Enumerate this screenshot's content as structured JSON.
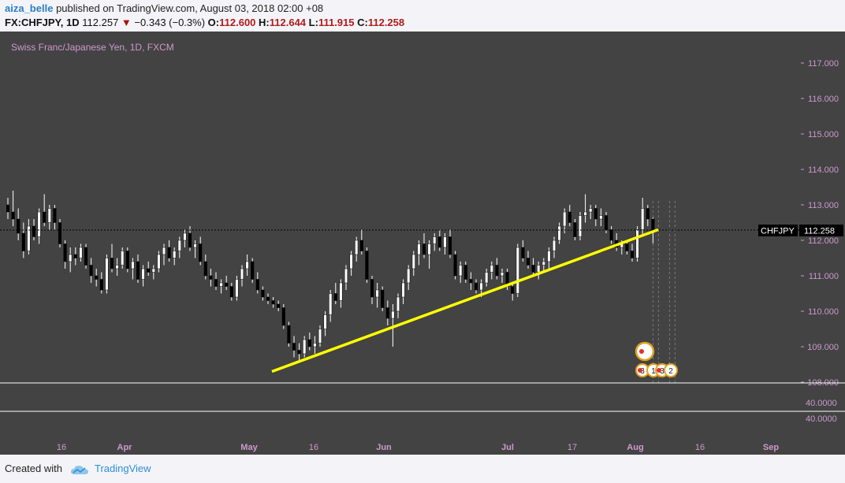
{
  "header": {
    "author": "aiza_belle",
    "published_text": "published on TradingView.com, August 03, 2018 02:00 +08",
    "symbol": "FX:CHFJPY, 1D",
    "last": "112.257",
    "change": "−0.343 (−0.3%)",
    "open_label": "O:",
    "open": "112.600",
    "high_label": "H:",
    "high": "112.644",
    "low_label": "L:",
    "low": "111.915",
    "close_label": "C:",
    "close": "112.258"
  },
  "footer": {
    "created_with": "Created with",
    "brand": "TradingView"
  },
  "colors": {
    "background": "#434343",
    "trendline": "#ffff00",
    "price_badge": "#000000",
    "up_candle": "#ffffff",
    "down_candle": "#000000",
    "axis_text": "#cc99cc"
  },
  "chart_data": {
    "type": "candlestick",
    "title": "Swiss Franc/Japanese Yen, 1D, FXCM",
    "y_ticks": [
      "117.000",
      "116.000",
      "115.000",
      "114.000",
      "113.000",
      "112.000",
      "111.000",
      "110.000",
      "109.000",
      "108.000"
    ],
    "ylim": [
      107.95,
      117.3
    ],
    "sub_panel_tick": "40.0000",
    "x_ticks": [
      "16",
      "Apr",
      "May",
      "16",
      "Jun",
      "Jul",
      "17",
      "Aug",
      "16",
      "Sep"
    ],
    "price_label": {
      "symbol": "CHFJPY",
      "value": "112.258"
    },
    "trendline": {
      "from": {
        "x": "May 07",
        "y": 108.3
      },
      "to": {
        "x": "Aug 06",
        "y": 112.3
      }
    },
    "event_markers": [
      "3",
      "1",
      "3",
      "2"
    ],
    "candles": [
      {
        "o": 113.0,
        "h": 113.2,
        "l": 112.6,
        "c": 112.8
      },
      {
        "o": 112.8,
        "h": 113.4,
        "l": 112.4,
        "c": 112.6
      },
      {
        "o": 112.6,
        "h": 112.9,
        "l": 112.0,
        "c": 112.2
      },
      {
        "o": 112.2,
        "h": 112.5,
        "l": 111.5,
        "c": 111.7
      },
      {
        "o": 111.7,
        "h": 112.6,
        "l": 111.6,
        "c": 112.4
      },
      {
        "o": 112.4,
        "h": 112.6,
        "l": 112.0,
        "c": 112.1
      },
      {
        "o": 112.1,
        "h": 112.9,
        "l": 111.9,
        "c": 112.8
      },
      {
        "o": 112.8,
        "h": 113.3,
        "l": 112.4,
        "c": 112.5
      },
      {
        "o": 112.5,
        "h": 113.0,
        "l": 112.3,
        "c": 112.9
      },
      {
        "o": 112.9,
        "h": 113.0,
        "l": 112.3,
        "c": 112.5
      },
      {
        "o": 112.5,
        "h": 112.6,
        "l": 111.8,
        "c": 111.9
      },
      {
        "o": 111.9,
        "h": 112.0,
        "l": 111.2,
        "c": 111.4
      },
      {
        "o": 111.4,
        "h": 111.8,
        "l": 111.1,
        "c": 111.6
      },
      {
        "o": 111.6,
        "h": 111.8,
        "l": 111.3,
        "c": 111.5
      },
      {
        "o": 111.5,
        "h": 111.9,
        "l": 111.4,
        "c": 111.8
      },
      {
        "o": 111.8,
        "h": 111.9,
        "l": 111.2,
        "c": 111.3
      },
      {
        "o": 111.3,
        "h": 111.5,
        "l": 110.8,
        "c": 111.0
      },
      {
        "o": 111.0,
        "h": 111.2,
        "l": 110.7,
        "c": 110.9
      },
      {
        "o": 110.9,
        "h": 111.1,
        "l": 110.5,
        "c": 110.6
      },
      {
        "o": 110.6,
        "h": 111.6,
        "l": 110.5,
        "c": 111.5
      },
      {
        "o": 111.5,
        "h": 111.9,
        "l": 111.1,
        "c": 111.2
      },
      {
        "o": 111.2,
        "h": 111.5,
        "l": 111.0,
        "c": 111.3
      },
      {
        "o": 111.3,
        "h": 111.8,
        "l": 111.2,
        "c": 111.7
      },
      {
        "o": 111.7,
        "h": 111.8,
        "l": 111.1,
        "c": 111.2
      },
      {
        "o": 111.2,
        "h": 111.5,
        "l": 110.9,
        "c": 111.4
      },
      {
        "o": 111.4,
        "h": 111.6,
        "l": 110.8,
        "c": 110.9
      },
      {
        "o": 110.9,
        "h": 111.3,
        "l": 110.7,
        "c": 111.2
      },
      {
        "o": 111.2,
        "h": 111.4,
        "l": 111.0,
        "c": 111.1
      },
      {
        "o": 111.1,
        "h": 111.3,
        "l": 110.9,
        "c": 111.2
      },
      {
        "o": 111.2,
        "h": 111.7,
        "l": 111.1,
        "c": 111.6
      },
      {
        "o": 111.6,
        "h": 111.9,
        "l": 111.3,
        "c": 111.8
      },
      {
        "o": 111.8,
        "h": 112.0,
        "l": 111.4,
        "c": 111.5
      },
      {
        "o": 111.5,
        "h": 111.8,
        "l": 111.3,
        "c": 111.7
      },
      {
        "o": 111.7,
        "h": 112.1,
        "l": 111.5,
        "c": 112.0
      },
      {
        "o": 112.0,
        "h": 112.3,
        "l": 111.8,
        "c": 112.2
      },
      {
        "o": 112.2,
        "h": 112.4,
        "l": 111.7,
        "c": 111.8
      },
      {
        "o": 111.8,
        "h": 112.0,
        "l": 111.5,
        "c": 111.9
      },
      {
        "o": 111.9,
        "h": 112.1,
        "l": 111.3,
        "c": 111.4
      },
      {
        "o": 111.4,
        "h": 111.6,
        "l": 110.9,
        "c": 111.0
      },
      {
        "o": 111.0,
        "h": 111.2,
        "l": 110.7,
        "c": 110.9
      },
      {
        "o": 110.9,
        "h": 111.1,
        "l": 110.6,
        "c": 110.7
      },
      {
        "o": 110.7,
        "h": 110.9,
        "l": 110.5,
        "c": 110.8
      },
      {
        "o": 110.8,
        "h": 111.0,
        "l": 110.6,
        "c": 110.7
      },
      {
        "o": 110.7,
        "h": 110.8,
        "l": 110.3,
        "c": 110.4
      },
      {
        "o": 110.4,
        "h": 111.0,
        "l": 110.3,
        "c": 110.9
      },
      {
        "o": 110.9,
        "h": 111.3,
        "l": 110.7,
        "c": 111.2
      },
      {
        "o": 111.2,
        "h": 111.6,
        "l": 111.0,
        "c": 111.4
      },
      {
        "o": 111.4,
        "h": 111.5,
        "l": 110.8,
        "c": 110.9
      },
      {
        "o": 110.9,
        "h": 111.1,
        "l": 110.5,
        "c": 110.6
      },
      {
        "o": 110.6,
        "h": 110.7,
        "l": 110.3,
        "c": 110.4
      },
      {
        "o": 110.4,
        "h": 110.5,
        "l": 110.2,
        "c": 110.3
      },
      {
        "o": 110.3,
        "h": 110.4,
        "l": 110.1,
        "c": 110.2
      },
      {
        "o": 110.2,
        "h": 110.3,
        "l": 110.0,
        "c": 110.1
      },
      {
        "o": 110.1,
        "h": 110.2,
        "l": 109.5,
        "c": 109.6
      },
      {
        "o": 109.6,
        "h": 109.7,
        "l": 109.0,
        "c": 109.1
      },
      {
        "o": 109.1,
        "h": 109.3,
        "l": 108.7,
        "c": 108.9
      },
      {
        "o": 108.9,
        "h": 109.1,
        "l": 108.6,
        "c": 108.8
      },
      {
        "o": 108.8,
        "h": 109.3,
        "l": 108.7,
        "c": 109.2
      },
      {
        "o": 109.2,
        "h": 109.4,
        "l": 108.9,
        "c": 109.0
      },
      {
        "o": 109.0,
        "h": 109.3,
        "l": 108.8,
        "c": 109.1
      },
      {
        "o": 109.1,
        "h": 109.6,
        "l": 109.0,
        "c": 109.5
      },
      {
        "o": 109.5,
        "h": 110.0,
        "l": 109.3,
        "c": 109.9
      },
      {
        "o": 109.9,
        "h": 110.6,
        "l": 109.7,
        "c": 110.5
      },
      {
        "o": 110.5,
        "h": 110.8,
        "l": 110.2,
        "c": 110.3
      },
      {
        "o": 110.3,
        "h": 110.9,
        "l": 110.1,
        "c": 110.8
      },
      {
        "o": 110.8,
        "h": 111.3,
        "l": 110.6,
        "c": 111.2
      },
      {
        "o": 111.2,
        "h": 111.7,
        "l": 111.0,
        "c": 111.6
      },
      {
        "o": 111.6,
        "h": 112.1,
        "l": 111.4,
        "c": 112.0
      },
      {
        "o": 112.0,
        "h": 112.3,
        "l": 111.6,
        "c": 111.7
      },
      {
        "o": 111.7,
        "h": 111.8,
        "l": 110.8,
        "c": 110.9
      },
      {
        "o": 110.9,
        "h": 111.0,
        "l": 110.2,
        "c": 110.4
      },
      {
        "o": 110.4,
        "h": 110.8,
        "l": 110.1,
        "c": 110.6
      },
      {
        "o": 110.6,
        "h": 110.7,
        "l": 110.0,
        "c": 110.1
      },
      {
        "o": 110.1,
        "h": 110.3,
        "l": 109.6,
        "c": 109.8
      },
      {
        "o": 109.8,
        "h": 110.2,
        "l": 109.0,
        "c": 110.0
      },
      {
        "o": 110.0,
        "h": 110.5,
        "l": 109.8,
        "c": 110.4
      },
      {
        "o": 110.4,
        "h": 110.9,
        "l": 110.2,
        "c": 110.8
      },
      {
        "o": 110.8,
        "h": 111.3,
        "l": 110.6,
        "c": 111.2
      },
      {
        "o": 111.2,
        "h": 111.7,
        "l": 111.0,
        "c": 111.6
      },
      {
        "o": 111.6,
        "h": 112.0,
        "l": 111.3,
        "c": 111.9
      },
      {
        "o": 111.9,
        "h": 112.2,
        "l": 111.5,
        "c": 111.6
      },
      {
        "o": 111.6,
        "h": 112.0,
        "l": 111.2,
        "c": 111.9
      },
      {
        "o": 111.9,
        "h": 112.2,
        "l": 111.7,
        "c": 112.1
      },
      {
        "o": 112.1,
        "h": 112.3,
        "l": 111.7,
        "c": 111.8
      },
      {
        "o": 111.8,
        "h": 112.2,
        "l": 111.6,
        "c": 112.1
      },
      {
        "o": 112.1,
        "h": 112.3,
        "l": 111.5,
        "c": 111.6
      },
      {
        "o": 111.6,
        "h": 111.7,
        "l": 110.9,
        "c": 111.0
      },
      {
        "o": 111.0,
        "h": 111.4,
        "l": 110.8,
        "c": 111.3
      },
      {
        "o": 111.3,
        "h": 111.4,
        "l": 110.8,
        "c": 110.9
      },
      {
        "o": 110.9,
        "h": 111.1,
        "l": 110.6,
        "c": 110.8
      },
      {
        "o": 110.8,
        "h": 110.9,
        "l": 110.5,
        "c": 110.6
      },
      {
        "o": 110.6,
        "h": 110.9,
        "l": 110.4,
        "c": 110.8
      },
      {
        "o": 110.8,
        "h": 111.2,
        "l": 110.7,
        "c": 111.1
      },
      {
        "o": 111.1,
        "h": 111.4,
        "l": 110.9,
        "c": 111.3
      },
      {
        "o": 111.3,
        "h": 111.5,
        "l": 110.9,
        "c": 111.0
      },
      {
        "o": 111.0,
        "h": 111.2,
        "l": 110.8,
        "c": 111.1
      },
      {
        "o": 111.1,
        "h": 111.2,
        "l": 110.6,
        "c": 110.7
      },
      {
        "o": 110.7,
        "h": 110.8,
        "l": 110.3,
        "c": 110.5
      },
      {
        "o": 110.5,
        "h": 111.9,
        "l": 110.4,
        "c": 111.8
      },
      {
        "o": 111.8,
        "h": 112.0,
        "l": 111.4,
        "c": 111.5
      },
      {
        "o": 111.5,
        "h": 111.7,
        "l": 111.2,
        "c": 111.3
      },
      {
        "o": 111.3,
        "h": 111.5,
        "l": 111.0,
        "c": 111.1
      },
      {
        "o": 111.1,
        "h": 111.4,
        "l": 110.9,
        "c": 111.3
      },
      {
        "o": 111.3,
        "h": 111.5,
        "l": 111.1,
        "c": 111.4
      },
      {
        "o": 111.4,
        "h": 111.8,
        "l": 111.2,
        "c": 111.7
      },
      {
        "o": 111.7,
        "h": 112.1,
        "l": 111.5,
        "c": 112.0
      },
      {
        "o": 112.0,
        "h": 112.5,
        "l": 111.9,
        "c": 112.4
      },
      {
        "o": 112.4,
        "h": 112.9,
        "l": 112.2,
        "c": 112.8
      },
      {
        "o": 112.8,
        "h": 113.0,
        "l": 112.4,
        "c": 112.5
      },
      {
        "o": 112.5,
        "h": 112.6,
        "l": 112.0,
        "c": 112.1
      },
      {
        "o": 112.1,
        "h": 112.8,
        "l": 112.0,
        "c": 112.7
      },
      {
        "o": 112.7,
        "h": 113.3,
        "l": 112.5,
        "c": 112.8
      },
      {
        "o": 112.8,
        "h": 113.0,
        "l": 112.6,
        "c": 112.9
      },
      {
        "o": 112.9,
        "h": 113.0,
        "l": 112.4,
        "c": 112.6
      },
      {
        "o": 112.6,
        "h": 112.9,
        "l": 112.4,
        "c": 112.7
      },
      {
        "o": 112.7,
        "h": 112.8,
        "l": 112.2,
        "c": 112.3
      },
      {
        "o": 112.3,
        "h": 112.4,
        "l": 111.9,
        "c": 112.0
      },
      {
        "o": 112.0,
        "h": 112.2,
        "l": 111.7,
        "c": 111.8
      },
      {
        "o": 111.8,
        "h": 112.0,
        "l": 111.6,
        "c": 111.9
      },
      {
        "o": 111.9,
        "h": 112.0,
        "l": 111.6,
        "c": 111.7
      },
      {
        "o": 111.7,
        "h": 111.9,
        "l": 111.4,
        "c": 111.5
      },
      {
        "o": 111.5,
        "h": 112.4,
        "l": 111.4,
        "c": 112.3
      },
      {
        "o": 112.3,
        "h": 113.2,
        "l": 112.1,
        "c": 112.9
      },
      {
        "o": 112.9,
        "h": 113.0,
        "l": 112.4,
        "c": 112.6
      },
      {
        "o": 112.6,
        "h": 112.644,
        "l": 111.915,
        "c": 112.258
      }
    ]
  }
}
